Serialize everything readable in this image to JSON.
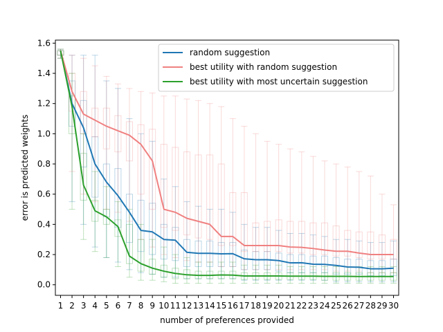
{
  "chart_data": {
    "type": "line",
    "title": "",
    "xlabel": "number of preferences provided",
    "ylabel": "error is predicted weights",
    "x": [
      1,
      2,
      3,
      4,
      5,
      6,
      7,
      8,
      9,
      10,
      11,
      12,
      13,
      14,
      15,
      16,
      17,
      18,
      19,
      20,
      21,
      22,
      23,
      24,
      25,
      26,
      27,
      28,
      29,
      30
    ],
    "x_tick_labels": [
      "1",
      "2",
      "3",
      "4",
      "5",
      "6",
      "7",
      "8",
      "9",
      "10",
      "11",
      "12",
      "13",
      "14",
      "15",
      "16",
      "17",
      "18",
      "19",
      "20",
      "21",
      "22",
      "23",
      "24",
      "25",
      "26",
      "27",
      "28",
      "29",
      "30"
    ],
    "y_ticks": [
      "0.0",
      "0.2",
      "0.4",
      "0.6",
      "0.8",
      "1.0",
      "1.2",
      "1.4",
      "1.6"
    ],
    "ylim": [
      -0.07,
      1.62
    ],
    "legend_position": "top-right",
    "grid": false,
    "series": [
      {
        "name": "random suggestion",
        "color": "#1f77b4",
        "values": [
          1.55,
          1.2,
          1.04,
          0.8,
          0.68,
          0.59,
          0.48,
          0.36,
          0.35,
          0.3,
          0.295,
          0.215,
          0.208,
          0.208,
          0.205,
          0.206,
          0.172,
          0.166,
          0.166,
          0.16,
          0.145,
          0.146,
          0.136,
          0.135,
          0.128,
          0.118,
          0.116,
          0.106,
          0.106,
          0.11
        ],
        "boxes": [
          {
            "q1": 1.52,
            "q3": 1.55,
            "lo": 1.5,
            "hi": 1.56
          },
          {
            "q1": 1.05,
            "q3": 1.35,
            "lo": 0.55,
            "hi": 1.52
          },
          {
            "q1": 0.78,
            "q3": 1.22,
            "lo": 0.4,
            "hi": 1.52
          },
          {
            "q1": 0.58,
            "q3": 0.98,
            "lo": 0.25,
            "hi": 1.52
          },
          {
            "q1": 0.45,
            "q3": 0.8,
            "lo": 0.18,
            "hi": 1.35
          },
          {
            "q1": 0.38,
            "q3": 0.77,
            "lo": 0.15,
            "hi": 1.3
          },
          {
            "q1": 0.28,
            "q3": 0.6,
            "lo": 0.1,
            "hi": 1.1
          },
          {
            "q1": 0.22,
            "q3": 0.56,
            "lo": 0.08,
            "hi": 1.0
          },
          {
            "q1": 0.2,
            "q3": 0.54,
            "lo": 0.07,
            "hi": 0.95
          },
          {
            "q1": 0.17,
            "q3": 0.4,
            "lo": 0.05,
            "hi": 0.7
          },
          {
            "q1": 0.16,
            "q3": 0.38,
            "lo": 0.05,
            "hi": 0.65
          },
          {
            "q1": 0.12,
            "q3": 0.3,
            "lo": 0.04,
            "hi": 0.55
          },
          {
            "q1": 0.12,
            "q3": 0.29,
            "lo": 0.04,
            "hi": 0.52
          },
          {
            "q1": 0.12,
            "q3": 0.29,
            "lo": 0.04,
            "hi": 0.5
          },
          {
            "q1": 0.12,
            "q3": 0.28,
            "lo": 0.04,
            "hi": 0.5
          },
          {
            "q1": 0.12,
            "q3": 0.28,
            "lo": 0.04,
            "hi": 0.48
          },
          {
            "q1": 0.1,
            "q3": 0.23,
            "lo": 0.03,
            "hi": 0.4
          },
          {
            "q1": 0.1,
            "q3": 0.22,
            "lo": 0.03,
            "hi": 0.38
          },
          {
            "q1": 0.1,
            "q3": 0.22,
            "lo": 0.03,
            "hi": 0.38
          },
          {
            "q1": 0.09,
            "q3": 0.21,
            "lo": 0.03,
            "hi": 0.36
          },
          {
            "q1": 0.08,
            "q3": 0.2,
            "lo": 0.03,
            "hi": 0.34
          },
          {
            "q1": 0.08,
            "q3": 0.2,
            "lo": 0.03,
            "hi": 0.34
          },
          {
            "q1": 0.08,
            "q3": 0.19,
            "lo": 0.03,
            "hi": 0.33
          },
          {
            "q1": 0.08,
            "q3": 0.19,
            "lo": 0.03,
            "hi": 0.32
          },
          {
            "q1": 0.07,
            "q3": 0.18,
            "lo": 0.02,
            "hi": 0.3
          },
          {
            "q1": 0.07,
            "q3": 0.17,
            "lo": 0.02,
            "hi": 0.3
          },
          {
            "q1": 0.07,
            "q3": 0.17,
            "lo": 0.02,
            "hi": 0.29
          },
          {
            "q1": 0.06,
            "q3": 0.16,
            "lo": 0.02,
            "hi": 0.28
          },
          {
            "q1": 0.06,
            "q3": 0.16,
            "lo": 0.02,
            "hi": 0.28
          },
          {
            "q1": 0.06,
            "q3": 0.17,
            "lo": 0.02,
            "hi": 0.29
          }
        ]
      },
      {
        "name": "best utility with random suggestion",
        "color": "#f08080",
        "values": [
          1.55,
          1.28,
          1.13,
          1.09,
          1.05,
          1.02,
          0.99,
          0.93,
          0.82,
          0.5,
          0.48,
          0.44,
          0.42,
          0.4,
          0.32,
          0.32,
          0.26,
          0.26,
          0.26,
          0.26,
          0.25,
          0.248,
          0.24,
          0.23,
          0.222,
          0.222,
          0.21,
          0.2,
          0.2,
          0.2
        ],
        "boxes": [
          {
            "q1": 1.52,
            "q3": 1.55,
            "lo": 1.5,
            "hi": 1.56
          },
          {
            "q1": 1.15,
            "q3": 1.4,
            "lo": 0.75,
            "hi": 1.52
          },
          {
            "q1": 1.0,
            "q3": 1.28,
            "lo": 0.6,
            "hi": 1.5
          },
          {
            "q1": 0.98,
            "q3": 1.17,
            "lo": 0.55,
            "hi": 1.45
          },
          {
            "q1": 0.9,
            "q3": 1.17,
            "lo": 0.5,
            "hi": 1.38
          },
          {
            "q1": 0.88,
            "q3": 1.12,
            "lo": 0.48,
            "hi": 1.33
          },
          {
            "q1": 0.82,
            "q3": 1.08,
            "lo": 0.42,
            "hi": 1.3
          },
          {
            "q1": 0.6,
            "q3": 1.06,
            "lo": 0.3,
            "hi": 1.28
          },
          {
            "q1": 0.5,
            "q3": 1.03,
            "lo": 0.25,
            "hi": 1.27
          },
          {
            "q1": 0.38,
            "q3": 0.93,
            "lo": 0.2,
            "hi": 1.25
          },
          {
            "q1": 0.36,
            "q3": 0.91,
            "lo": 0.18,
            "hi": 1.25
          },
          {
            "q1": 0.33,
            "q3": 0.88,
            "lo": 0.16,
            "hi": 1.23
          },
          {
            "q1": 0.31,
            "q3": 0.86,
            "lo": 0.15,
            "hi": 1.22
          },
          {
            "q1": 0.3,
            "q3": 0.86,
            "lo": 0.15,
            "hi": 1.2
          },
          {
            "q1": 0.26,
            "q3": 0.8,
            "lo": 0.12,
            "hi": 1.18
          },
          {
            "q1": 0.26,
            "q3": 0.61,
            "lo": 0.12,
            "hi": 1.1
          },
          {
            "q1": 0.22,
            "q3": 0.61,
            "lo": 0.1,
            "hi": 1.05
          },
          {
            "q1": 0.22,
            "q3": 0.41,
            "lo": 0.1,
            "hi": 1.0
          },
          {
            "q1": 0.22,
            "q3": 0.42,
            "lo": 0.1,
            "hi": 0.95
          },
          {
            "q1": 0.22,
            "q3": 0.43,
            "lo": 0.1,
            "hi": 0.93
          },
          {
            "q1": 0.21,
            "q3": 0.42,
            "lo": 0.1,
            "hi": 0.9
          },
          {
            "q1": 0.21,
            "q3": 0.42,
            "lo": 0.1,
            "hi": 0.88
          },
          {
            "q1": 0.2,
            "q3": 0.41,
            "lo": 0.1,
            "hi": 0.85
          },
          {
            "q1": 0.2,
            "q3": 0.41,
            "lo": 0.1,
            "hi": 0.82
          },
          {
            "q1": 0.19,
            "q3": 0.39,
            "lo": 0.09,
            "hi": 0.8
          },
          {
            "q1": 0.19,
            "q3": 0.36,
            "lo": 0.09,
            "hi": 0.78
          },
          {
            "q1": 0.18,
            "q3": 0.35,
            "lo": 0.09,
            "hi": 0.75
          },
          {
            "q1": 0.17,
            "q3": 0.35,
            "lo": 0.08,
            "hi": 0.72
          },
          {
            "q1": 0.17,
            "q3": 0.33,
            "lo": 0.08,
            "hi": 0.6
          },
          {
            "q1": 0.17,
            "q3": 0.3,
            "lo": 0.08,
            "hi": 0.53
          }
        ]
      },
      {
        "name": "best utility with most uncertain suggestion",
        "color": "#2ca02c",
        "values": [
          1.55,
          1.18,
          0.66,
          0.49,
          0.45,
          0.385,
          0.19,
          0.14,
          0.11,
          0.09,
          0.075,
          0.066,
          0.062,
          0.062,
          0.065,
          0.064,
          0.058,
          0.058,
          0.058,
          0.058,
          0.057,
          0.057,
          0.057,
          0.056,
          0.056,
          0.056,
          0.055,
          0.055,
          0.055,
          0.055
        ],
        "boxes": [
          {
            "q1": 1.52,
            "q3": 1.55,
            "lo": 1.5,
            "hi": 1.56
          },
          {
            "q1": 1.0,
            "q3": 1.25,
            "lo": 0.5,
            "hi": 1.4
          },
          {
            "q1": 0.56,
            "q3": 0.87,
            "lo": 0.3,
            "hi": 1.0
          },
          {
            "q1": 0.42,
            "q3": 0.56,
            "lo": 0.22,
            "hi": 0.75
          },
          {
            "q1": 0.4,
            "q3": 0.5,
            "lo": 0.18,
            "hi": 0.65
          },
          {
            "q1": 0.32,
            "q3": 0.43,
            "lo": 0.12,
            "hi": 0.55
          },
          {
            "q1": 0.14,
            "q3": 0.4,
            "lo": 0.05,
            "hi": 0.5
          },
          {
            "q1": 0.09,
            "q3": 0.3,
            "lo": 0.03,
            "hi": 0.4
          },
          {
            "q1": 0.07,
            "q3": 0.17,
            "lo": 0.03,
            "hi": 0.3
          },
          {
            "q1": 0.05,
            "q3": 0.13,
            "lo": 0.02,
            "hi": 0.25
          },
          {
            "q1": 0.04,
            "q3": 0.11,
            "lo": 0.01,
            "hi": 0.2
          },
          {
            "q1": 0.04,
            "q3": 0.1,
            "lo": 0.01,
            "hi": 0.18
          },
          {
            "q1": 0.04,
            "q3": 0.09,
            "lo": 0.01,
            "hi": 0.15
          },
          {
            "q1": 0.04,
            "q3": 0.09,
            "lo": 0.01,
            "hi": 0.15
          },
          {
            "q1": 0.04,
            "q3": 0.09,
            "lo": 0.01,
            "hi": 0.15
          },
          {
            "q1": 0.04,
            "q3": 0.09,
            "lo": 0.01,
            "hi": 0.15
          },
          {
            "q1": 0.035,
            "q3": 0.08,
            "lo": 0.01,
            "hi": 0.13
          },
          {
            "q1": 0.035,
            "q3": 0.08,
            "lo": 0.01,
            "hi": 0.13
          },
          {
            "q1": 0.035,
            "q3": 0.08,
            "lo": 0.01,
            "hi": 0.13
          },
          {
            "q1": 0.035,
            "q3": 0.08,
            "lo": 0.01,
            "hi": 0.13
          },
          {
            "q1": 0.035,
            "q3": 0.08,
            "lo": 0.01,
            "hi": 0.12
          },
          {
            "q1": 0.035,
            "q3": 0.08,
            "lo": 0.01,
            "hi": 0.12
          },
          {
            "q1": 0.035,
            "q3": 0.08,
            "lo": 0.01,
            "hi": 0.12
          },
          {
            "q1": 0.03,
            "q3": 0.08,
            "lo": 0.01,
            "hi": 0.12
          },
          {
            "q1": 0.03,
            "q3": 0.08,
            "lo": 0.01,
            "hi": 0.12
          },
          {
            "q1": 0.03,
            "q3": 0.08,
            "lo": 0.01,
            "hi": 0.12
          },
          {
            "q1": 0.03,
            "q3": 0.08,
            "lo": 0.01,
            "hi": 0.12
          },
          {
            "q1": 0.03,
            "q3": 0.08,
            "lo": 0.01,
            "hi": 0.12
          },
          {
            "q1": 0.03,
            "q3": 0.08,
            "lo": 0.01,
            "hi": 0.12
          },
          {
            "q1": 0.03,
            "q3": 0.08,
            "lo": 0.01,
            "hi": 0.12
          }
        ]
      }
    ]
  }
}
